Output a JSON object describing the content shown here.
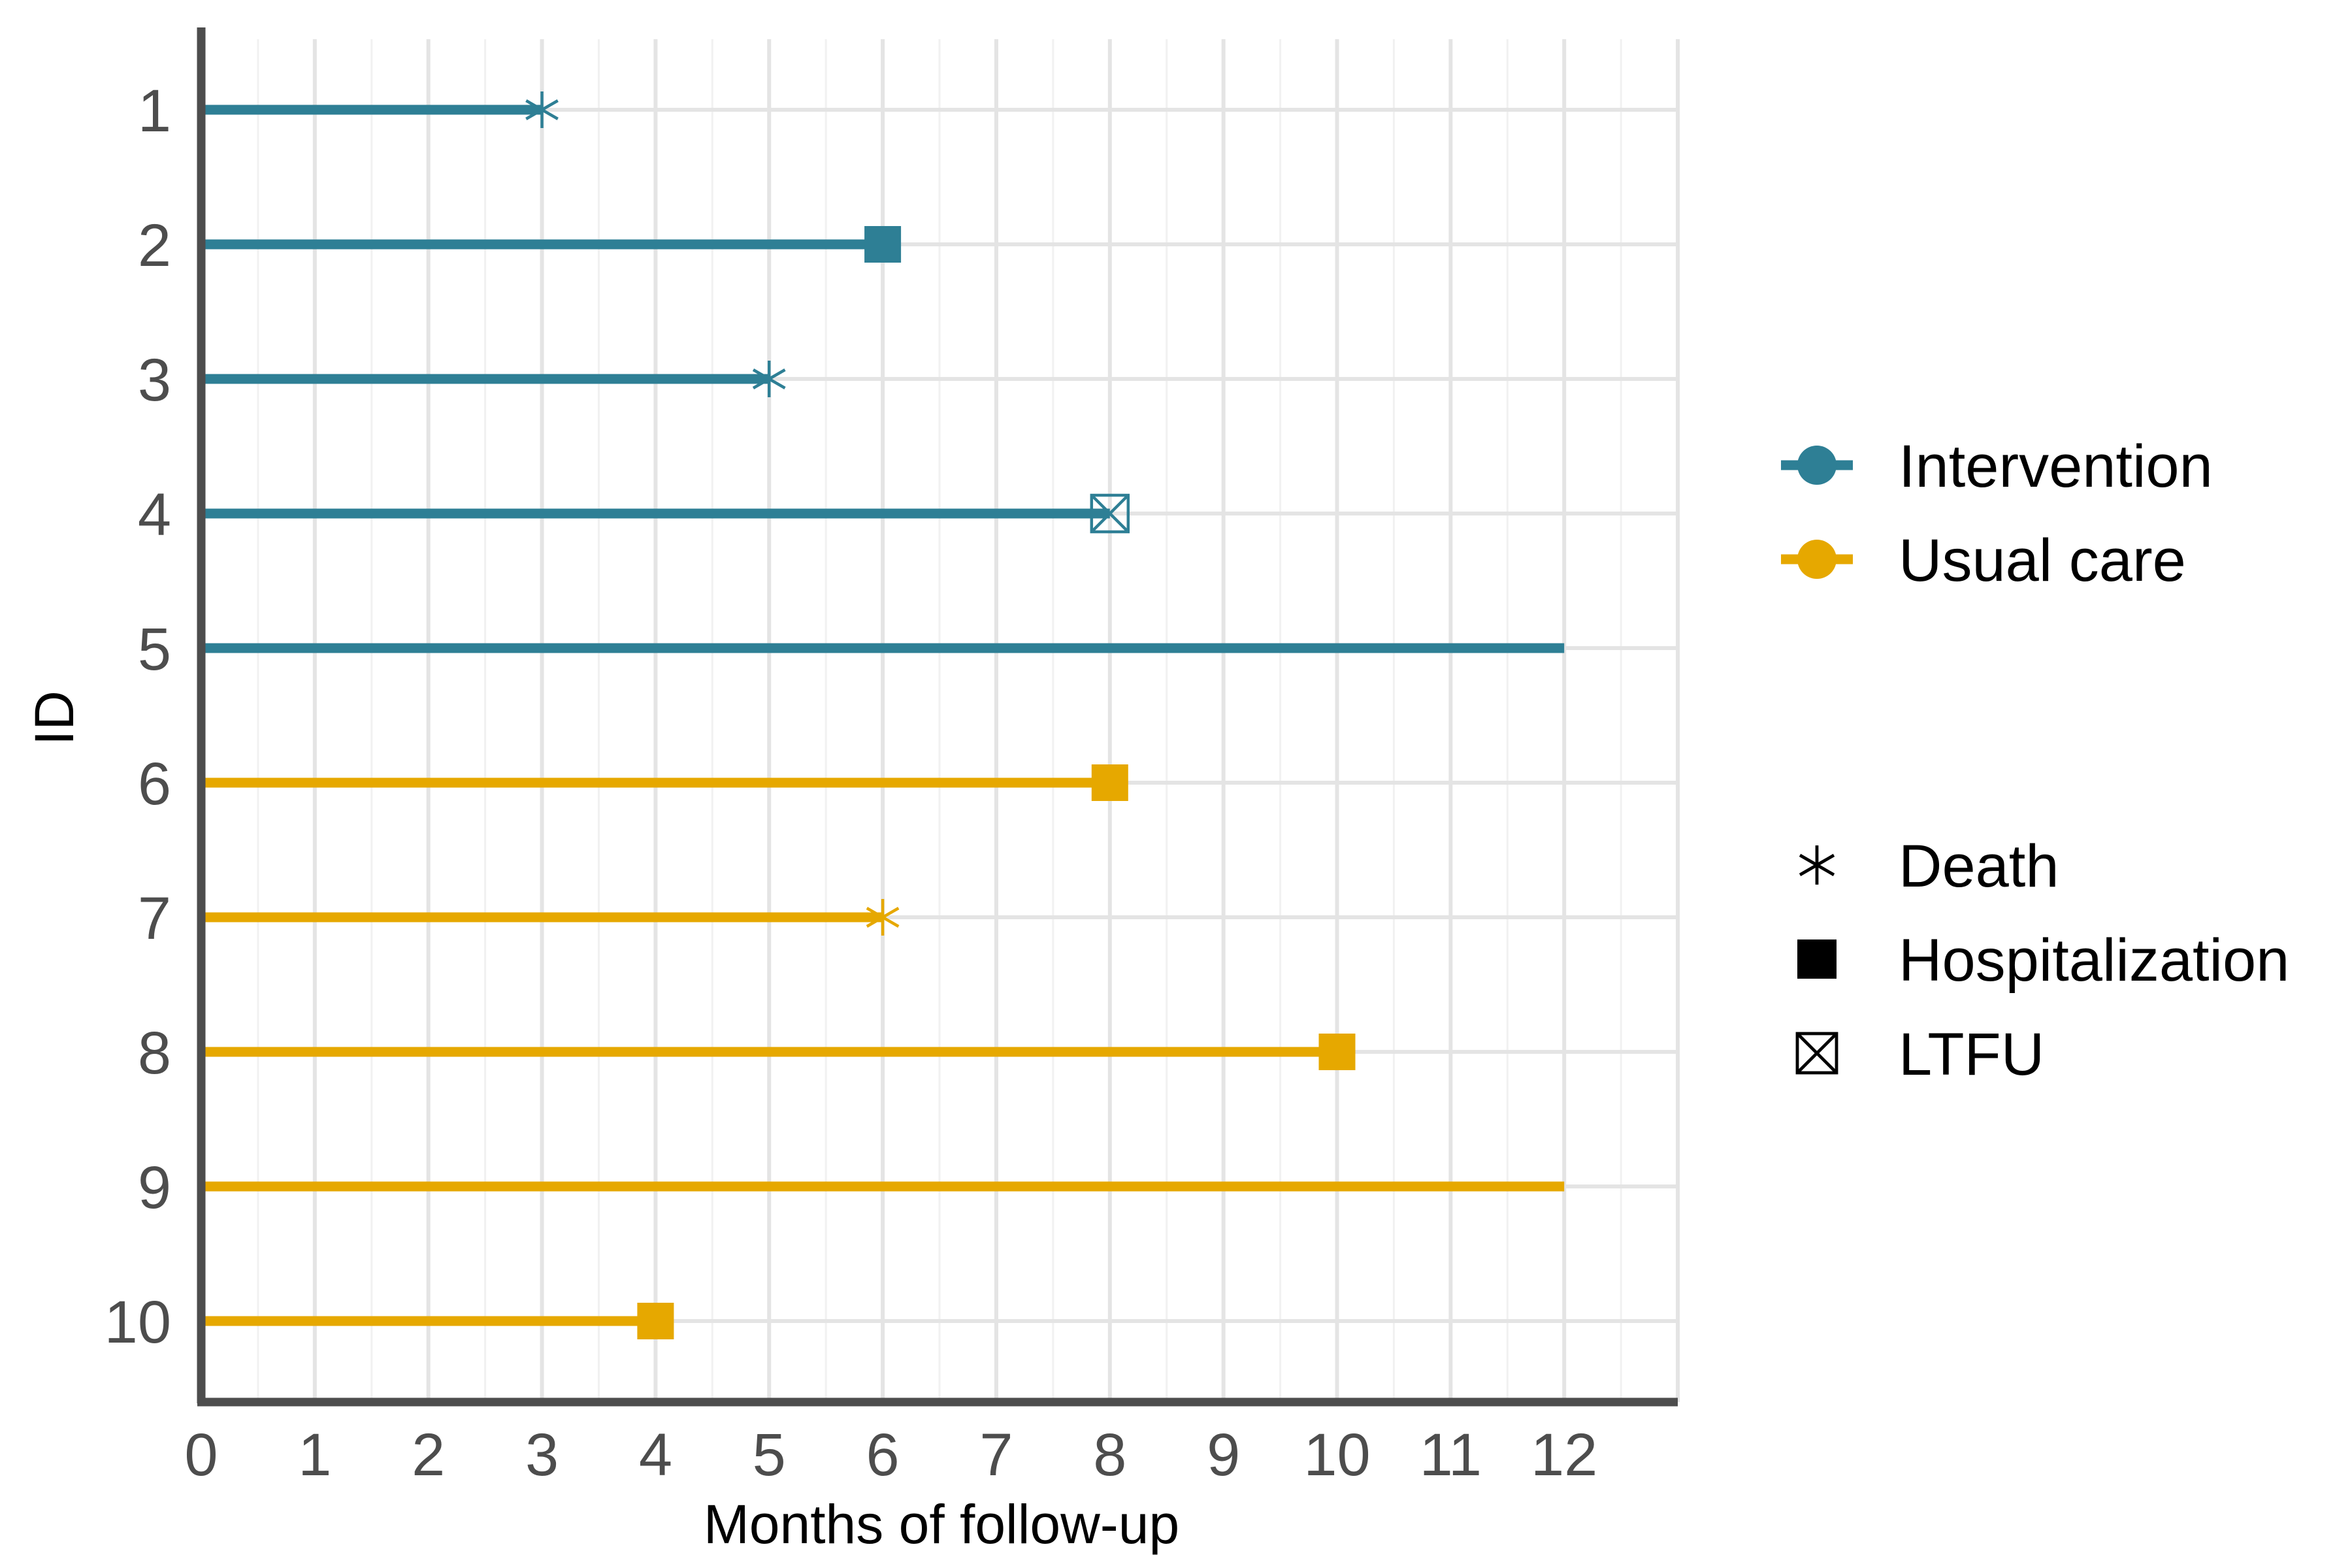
{
  "chart_data": {
    "type": "swimmer",
    "xlabel": "Months of follow-up",
    "ylabel": "ID",
    "xlim": [
      0,
      13
    ],
    "x_ticks": [
      0,
      1,
      2,
      3,
      4,
      5,
      6,
      7,
      8,
      9,
      10,
      11,
      12
    ],
    "grid": true,
    "legend_position": "right",
    "groups": [
      {
        "name": "Intervention",
        "color": "#2e7f95"
      },
      {
        "name": "Usual care",
        "color": "#e6a800"
      }
    ],
    "events": [
      {
        "name": "Death",
        "marker": "asterisk"
      },
      {
        "name": "Hospitalization",
        "marker": "filled-square"
      },
      {
        "name": "LTFU",
        "marker": "crossed-square"
      }
    ],
    "rows": [
      {
        "id": "1",
        "group": "Intervention",
        "end": 3,
        "event": "Death"
      },
      {
        "id": "2",
        "group": "Intervention",
        "end": 6,
        "event": "Hospitalization"
      },
      {
        "id": "3",
        "group": "Intervention",
        "end": 5,
        "event": "Death"
      },
      {
        "id": "4",
        "group": "Intervention",
        "end": 8,
        "event": "LTFU"
      },
      {
        "id": "5",
        "group": "Intervention",
        "end": 12,
        "event": null
      },
      {
        "id": "6",
        "group": "Usual care",
        "end": 8,
        "event": "Hospitalization"
      },
      {
        "id": "7",
        "group": "Usual care",
        "end": 6,
        "event": "Death"
      },
      {
        "id": "8",
        "group": "Usual care",
        "end": 10,
        "event": "Hospitalization"
      },
      {
        "id": "9",
        "group": "Usual care",
        "end": 12,
        "event": null
      },
      {
        "id": "10",
        "group": "Usual care",
        "end": 4,
        "event": "Hospitalization"
      }
    ]
  }
}
